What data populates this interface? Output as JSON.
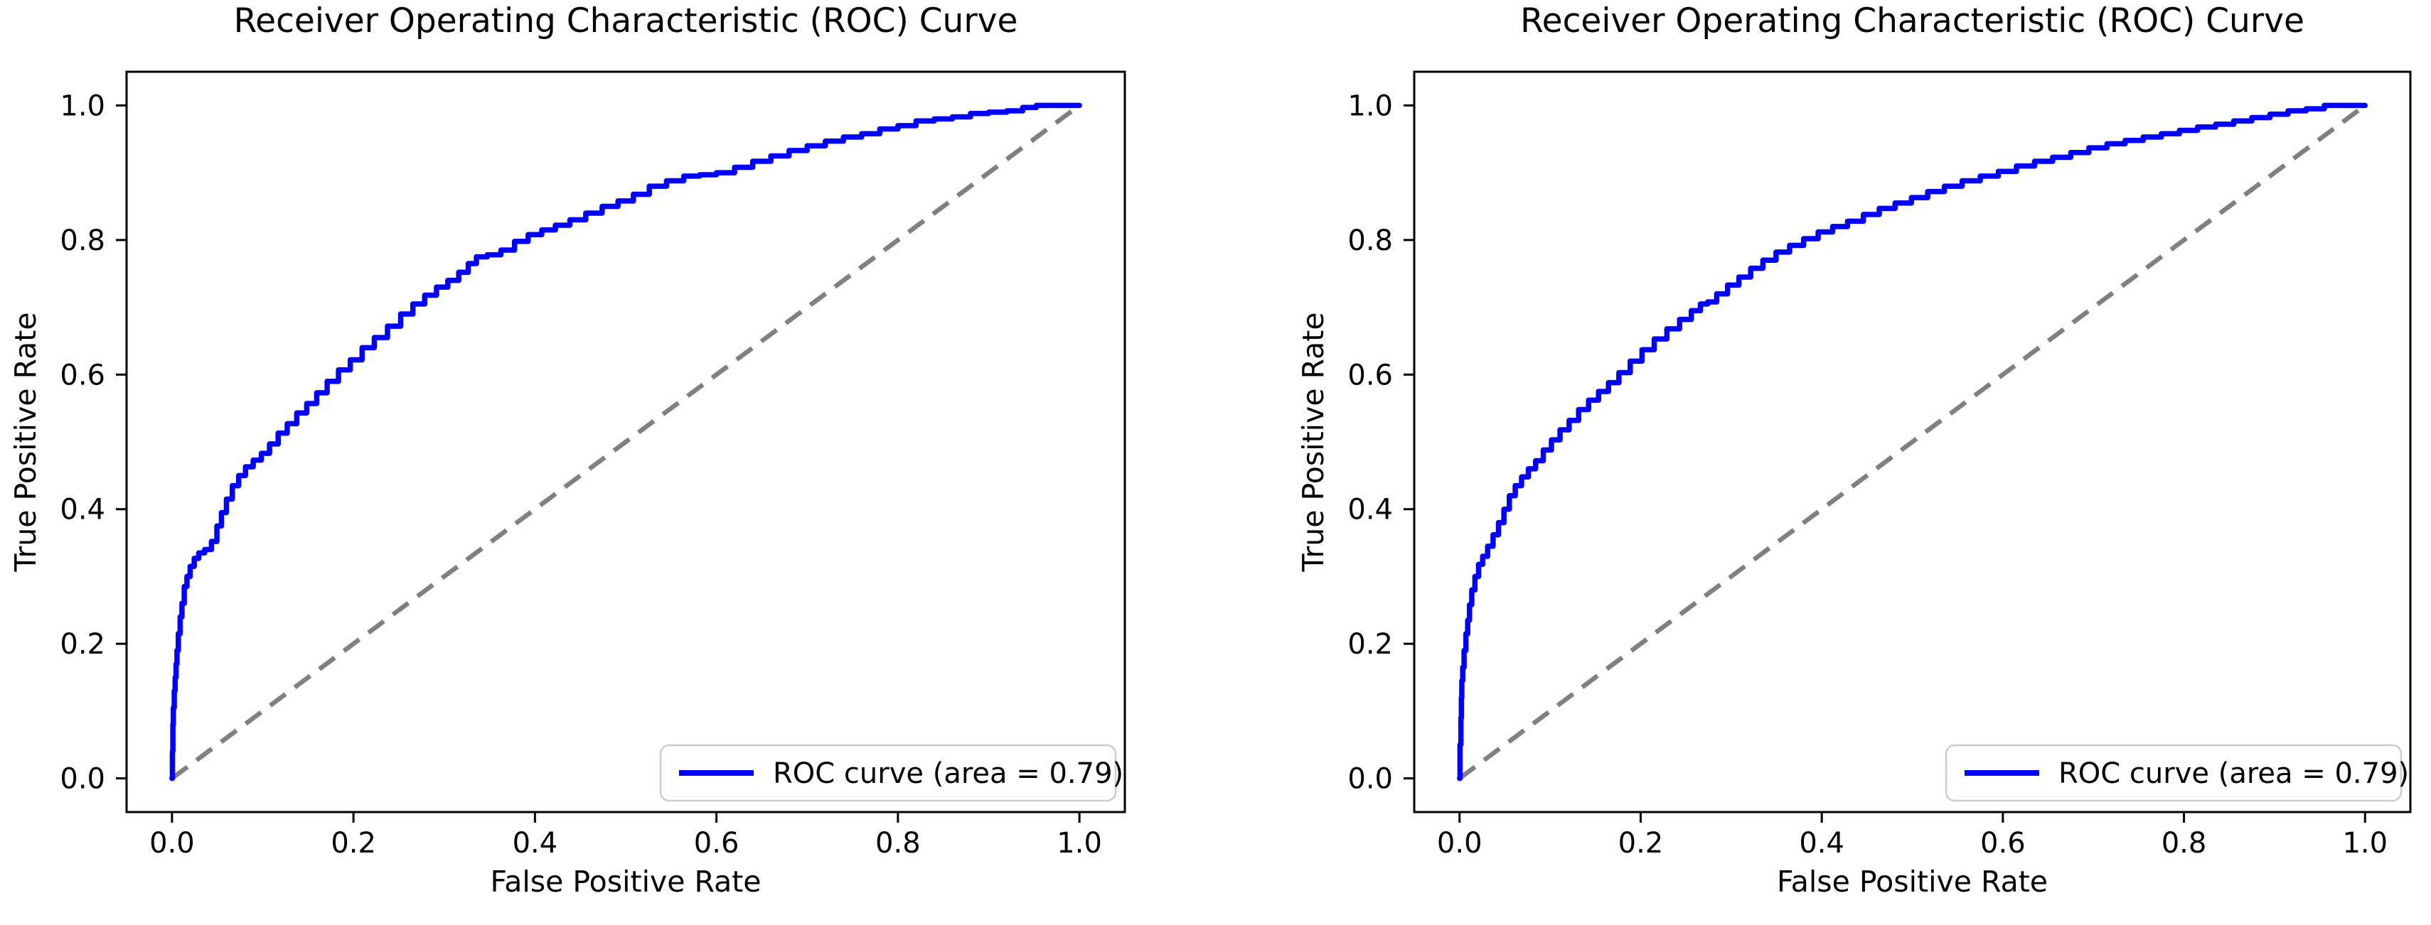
{
  "figure": {
    "background": "#ffffff"
  },
  "chart_data": [
    {
      "type": "line",
      "title": "Receiver Operating Characteristic (ROC) Curve",
      "xlabel": "False Positive Rate",
      "ylabel": "True Positive Rate",
      "xlim": [
        0.0,
        1.0
      ],
      "ylim": [
        0.0,
        1.0
      ],
      "grid": false,
      "xtick_labels": [
        "0.0",
        "0.2",
        "0.4",
        "0.6",
        "0.8",
        "1.0"
      ],
      "ytick_labels": [
        "0.0",
        "0.2",
        "0.4",
        "0.6",
        "0.8",
        "1.0"
      ],
      "xticks": [
        0.0,
        0.2,
        0.4,
        0.6,
        0.8,
        1.0
      ],
      "yticks": [
        0.0,
        0.2,
        0.4,
        0.6,
        0.8,
        1.0
      ],
      "auc": 0.79,
      "legend": {
        "position": "lower right",
        "label": "ROC curve (area = 0.79)",
        "line_color": "#0000ff",
        "border_color": "#cccccc"
      },
      "series": [
        {
          "name": "ROC curve (area = 0.79)",
          "color": "#0000ff",
          "style": "solid",
          "x": [
            0.0,
            0.001,
            0.001,
            0.002,
            0.003,
            0.004,
            0.005,
            0.006,
            0.008,
            0.01,
            0.012,
            0.015,
            0.018,
            0.022,
            0.027,
            0.032,
            0.04,
            0.047,
            0.052,
            0.057,
            0.063,
            0.07,
            0.077,
            0.085,
            0.094,
            0.103,
            0.112,
            0.122,
            0.132,
            0.143,
            0.154,
            0.165,
            0.177,
            0.19,
            0.203,
            0.216,
            0.23,
            0.245,
            0.259,
            0.272,
            0.285,
            0.298,
            0.31,
            0.322,
            0.331,
            0.34,
            0.355,
            0.37,
            0.385,
            0.4,
            0.415,
            0.43,
            0.447,
            0.465,
            0.483,
            0.5,
            0.517,
            0.535,
            0.555,
            0.573,
            0.59,
            0.61,
            0.63,
            0.65,
            0.67,
            0.69,
            0.71,
            0.73,
            0.75,
            0.77,
            0.79,
            0.81,
            0.83,
            0.85,
            0.87,
            0.89,
            0.91,
            0.93,
            0.945,
            0.96,
            1.0
          ],
          "y": [
            0.0,
            0.04,
            0.08,
            0.105,
            0.13,
            0.15,
            0.17,
            0.19,
            0.215,
            0.24,
            0.26,
            0.285,
            0.3,
            0.315,
            0.327,
            0.335,
            0.34,
            0.352,
            0.375,
            0.395,
            0.415,
            0.435,
            0.45,
            0.463,
            0.473,
            0.483,
            0.497,
            0.513,
            0.527,
            0.543,
            0.557,
            0.573,
            0.59,
            0.607,
            0.622,
            0.64,
            0.655,
            0.672,
            0.69,
            0.705,
            0.718,
            0.73,
            0.74,
            0.752,
            0.765,
            0.775,
            0.778,
            0.785,
            0.798,
            0.808,
            0.815,
            0.822,
            0.83,
            0.84,
            0.85,
            0.858,
            0.868,
            0.88,
            0.888,
            0.895,
            0.897,
            0.9,
            0.908,
            0.917,
            0.925,
            0.933,
            0.94,
            0.947,
            0.953,
            0.958,
            0.965,
            0.97,
            0.977,
            0.98,
            0.983,
            0.988,
            0.99,
            0.992,
            0.997,
            1.0,
            1.0
          ]
        },
        {
          "name": "chance-diagonal",
          "color": "#808080",
          "style": "dashed",
          "x": [
            0.0,
            1.0
          ],
          "y": [
            0.0,
            1.0
          ]
        }
      ]
    },
    {
      "type": "line",
      "title": "Receiver Operating Characteristic (ROC) Curve",
      "xlabel": "False Positive Rate",
      "ylabel": "True Positive Rate",
      "xlim": [
        0.0,
        1.0
      ],
      "ylim": [
        0.0,
        1.0
      ],
      "grid": false,
      "xtick_labels": [
        "0.0",
        "0.2",
        "0.4",
        "0.6",
        "0.8",
        "1.0"
      ],
      "ytick_labels": [
        "0.0",
        "0.2",
        "0.4",
        "0.6",
        "0.8",
        "1.0"
      ],
      "xticks": [
        0.0,
        0.2,
        0.4,
        0.6,
        0.8,
        1.0
      ],
      "yticks": [
        0.0,
        0.2,
        0.4,
        0.6,
        0.8,
        1.0
      ],
      "auc": 0.79,
      "legend": {
        "position": "lower right",
        "label": "ROC curve (area = 0.79)",
        "line_color": "#0000ff",
        "border_color": "#cccccc"
      },
      "series": [
        {
          "name": "ROC curve (area = 0.79)",
          "color": "#0000ff",
          "style": "solid",
          "x": [
            0.0,
            0.001,
            0.002,
            0.002,
            0.003,
            0.004,
            0.006,
            0.008,
            0.01,
            0.012,
            0.015,
            0.019,
            0.023,
            0.028,
            0.034,
            0.04,
            0.046,
            0.052,
            0.058,
            0.065,
            0.072,
            0.08,
            0.088,
            0.097,
            0.106,
            0.116,
            0.126,
            0.137,
            0.148,
            0.159,
            0.17,
            0.182,
            0.195,
            0.208,
            0.222,
            0.236,
            0.25,
            0.262,
            0.27,
            0.278,
            0.29,
            0.302,
            0.315,
            0.328,
            0.342,
            0.357,
            0.372,
            0.388,
            0.404,
            0.42,
            0.437,
            0.455,
            0.472,
            0.49,
            0.508,
            0.526,
            0.545,
            0.565,
            0.585,
            0.605,
            0.625,
            0.645,
            0.665,
            0.685,
            0.705,
            0.725,
            0.745,
            0.765,
            0.785,
            0.805,
            0.825,
            0.845,
            0.865,
            0.885,
            0.905,
            0.925,
            0.945,
            0.965,
            1.0
          ],
          "y": [
            0.0,
            0.05,
            0.09,
            0.12,
            0.145,
            0.165,
            0.19,
            0.215,
            0.235,
            0.258,
            0.28,
            0.3,
            0.318,
            0.33,
            0.345,
            0.362,
            0.38,
            0.4,
            0.42,
            0.435,
            0.448,
            0.46,
            0.472,
            0.488,
            0.503,
            0.518,
            0.532,
            0.548,
            0.562,
            0.575,
            0.588,
            0.603,
            0.62,
            0.637,
            0.653,
            0.668,
            0.682,
            0.695,
            0.705,
            0.708,
            0.72,
            0.733,
            0.745,
            0.758,
            0.77,
            0.782,
            0.792,
            0.802,
            0.812,
            0.82,
            0.828,
            0.838,
            0.847,
            0.855,
            0.863,
            0.872,
            0.88,
            0.888,
            0.895,
            0.902,
            0.91,
            0.917,
            0.923,
            0.93,
            0.937,
            0.943,
            0.948,
            0.953,
            0.958,
            0.963,
            0.968,
            0.972,
            0.977,
            0.982,
            0.987,
            0.992,
            0.995,
            1.0,
            1.0
          ]
        },
        {
          "name": "chance-diagonal",
          "color": "#808080",
          "style": "dashed",
          "x": [
            0.0,
            1.0
          ],
          "y": [
            0.0,
            1.0
          ]
        }
      ]
    }
  ]
}
